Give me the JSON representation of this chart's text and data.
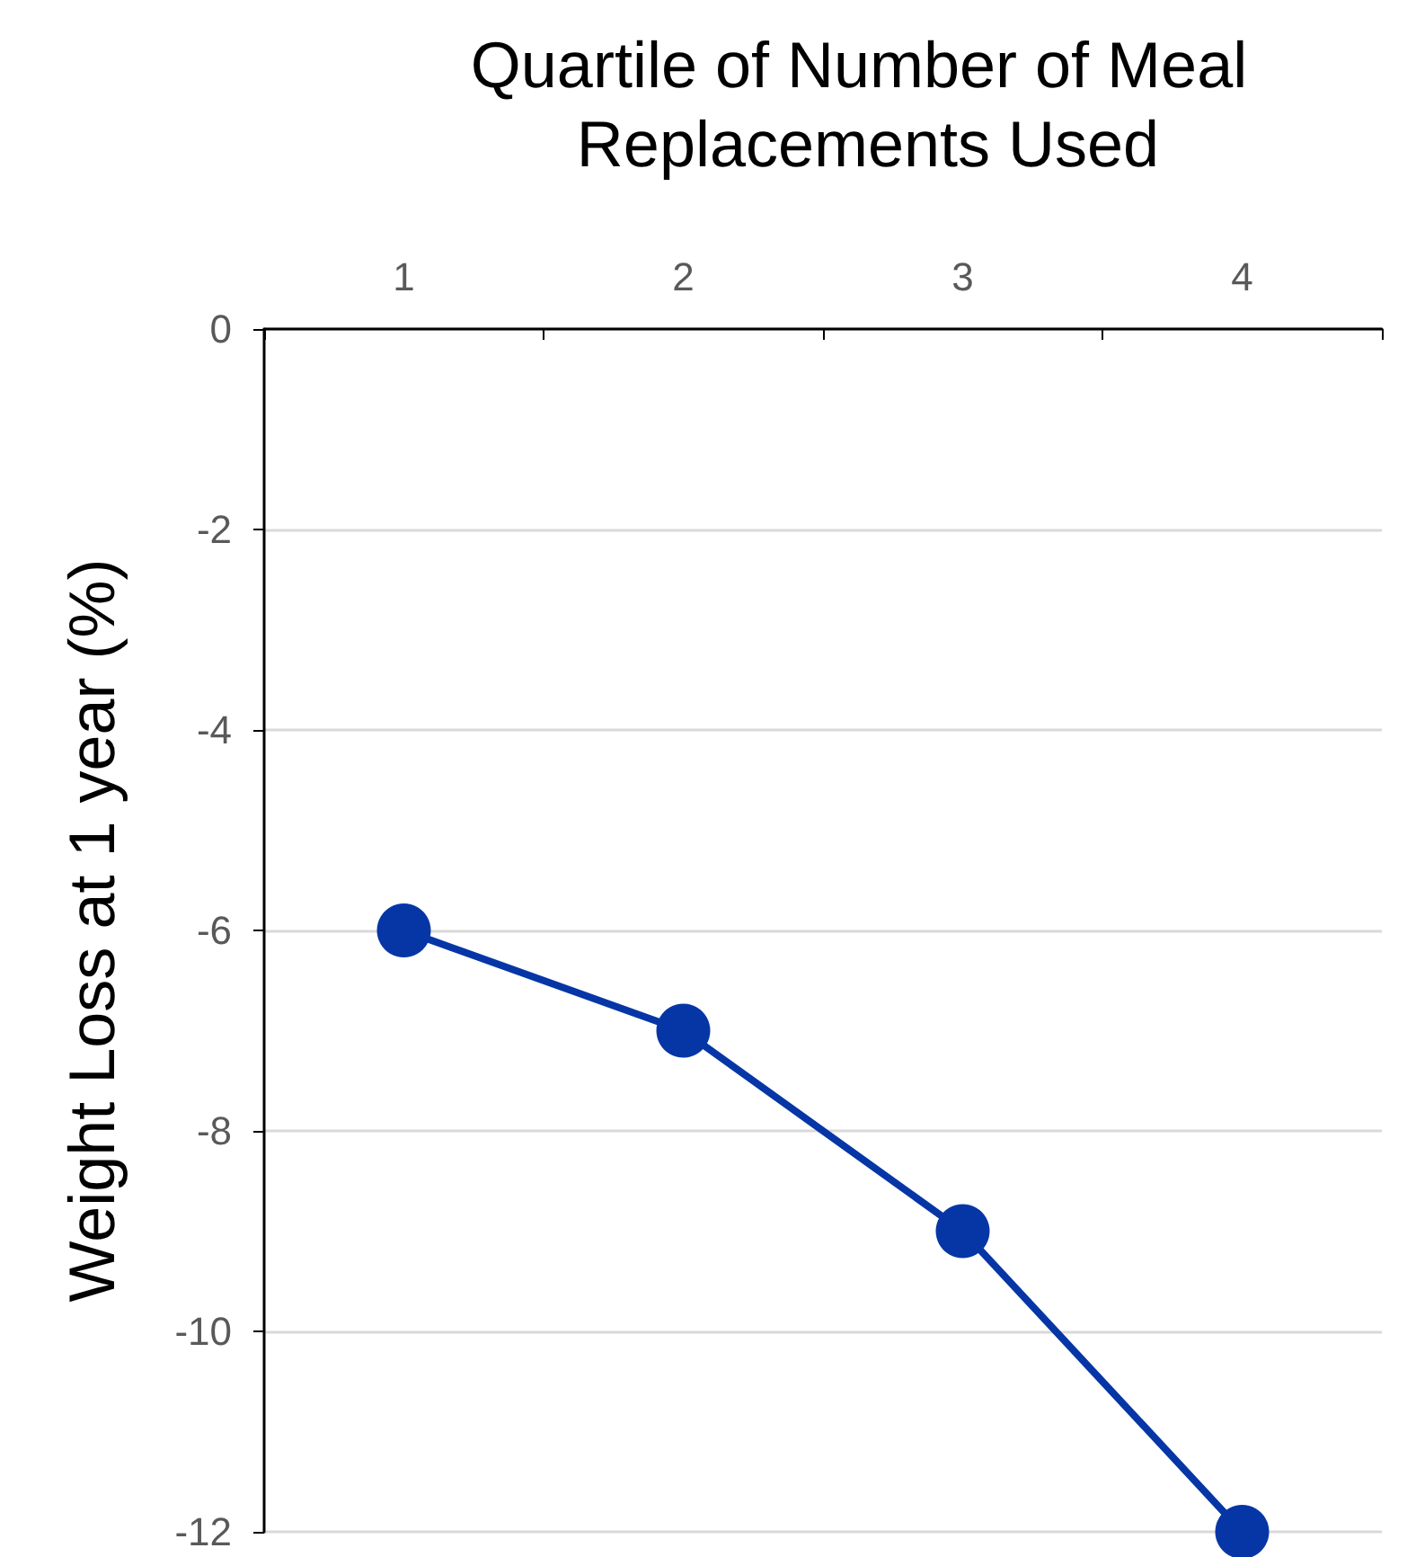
{
  "chart_data": {
    "type": "line",
    "xlabel": "Quartile of Number of Meal Replacements Used",
    "ylabel": "Weight Loss at 1 year (%)",
    "categories": [
      "1",
      "2",
      "3",
      "4"
    ],
    "series": [
      {
        "color": "#0636a6",
        "values": [
          -6,
          -7,
          -9,
          -12
        ]
      }
    ],
    "ylim": [
      -12,
      0
    ],
    "yticks": [
      -12,
      -10,
      -8,
      -6,
      -4,
      -2,
      0
    ],
    "grid": "y",
    "marker": "circle",
    "line_style": "solid"
  }
}
